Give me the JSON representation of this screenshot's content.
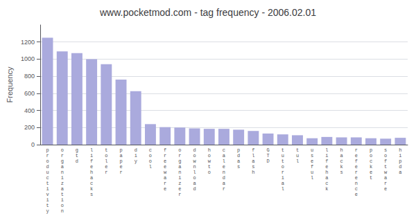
{
  "chart_data": {
    "type": "bar",
    "title": "www.pocketmod.com - tag frequency - 2006.02.01",
    "ylabel": "Frequency",
    "categories": [
      "productivity",
      "organization",
      "gtd",
      "lifehacks",
      "toler",
      "paper",
      "diy",
      "cool",
      "freeware",
      "organizer",
      "download",
      "howto",
      "calendar",
      "pdas",
      "flash",
      "GTD",
      "tutorial",
      "tul",
      "useful",
      "lifehack",
      "hacks",
      "reference",
      "pocket",
      "software",
      "hipda"
    ],
    "values": [
      1250,
      1090,
      1070,
      1000,
      940,
      760,
      625,
      240,
      205,
      200,
      190,
      185,
      185,
      175,
      160,
      130,
      120,
      110,
      75,
      90,
      85,
      85,
      75,
      70,
      80
    ],
    "color": "#aaaadd",
    "ylim": [
      0,
      1400
    ],
    "yticks": [
      0,
      200,
      400,
      600,
      800,
      1000,
      1200
    ],
    "grid": true
  }
}
